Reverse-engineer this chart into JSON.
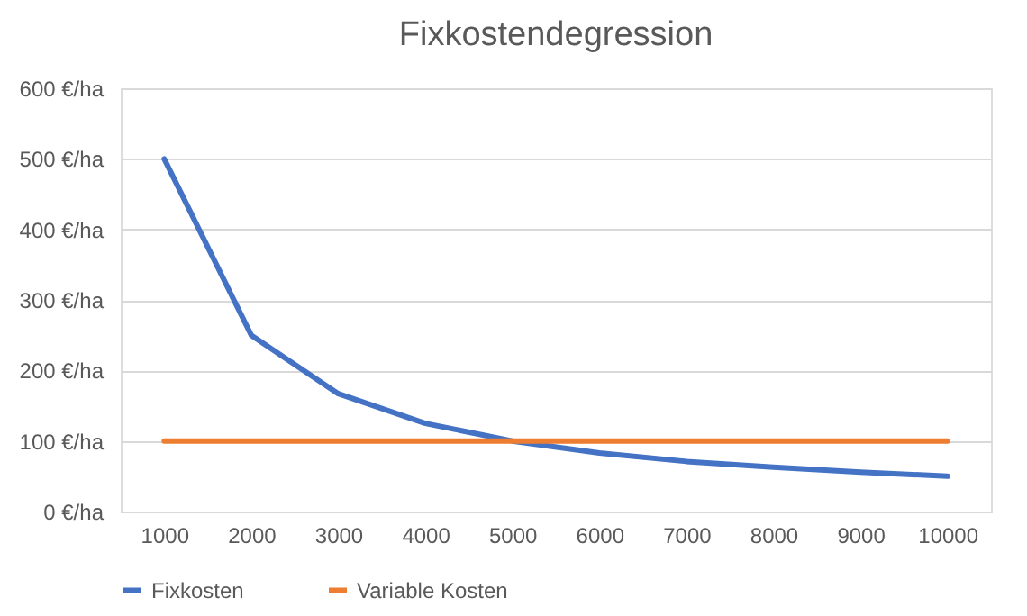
{
  "chart_data": {
    "type": "line",
    "title": "Fixkostendegression",
    "categories": [
      "1000",
      "2000",
      "3000",
      "4000",
      "5000",
      "6000",
      "7000",
      "8000",
      "9000",
      "10000"
    ],
    "series": [
      {
        "name": "Fixkosten",
        "color": "#4472c4",
        "values": [
          500,
          250,
          167,
          125,
          100,
          83,
          71,
          63,
          56,
          50
        ]
      },
      {
        "name": "Variable Kosten",
        "color": "#ed7d31",
        "values": [
          100,
          100,
          100,
          100,
          100,
          100,
          100,
          100,
          100,
          100
        ]
      }
    ],
    "ylim": [
      0,
      600
    ],
    "yticks": [
      {
        "value": 0,
        "label": "0 €/ha"
      },
      {
        "value": 100,
        "label": "100 €/ha"
      },
      {
        "value": 200,
        "label": "200 €/ha"
      },
      {
        "value": 300,
        "label": "300 €/ha"
      },
      {
        "value": 400,
        "label": "400 €/ha"
      },
      {
        "value": 500,
        "label": "500 €/ha"
      },
      {
        "value": 600,
        "label": "600 €/ha"
      }
    ],
    "grid": "y",
    "legend": "bottom",
    "marker": "none",
    "line_style": "solid"
  }
}
